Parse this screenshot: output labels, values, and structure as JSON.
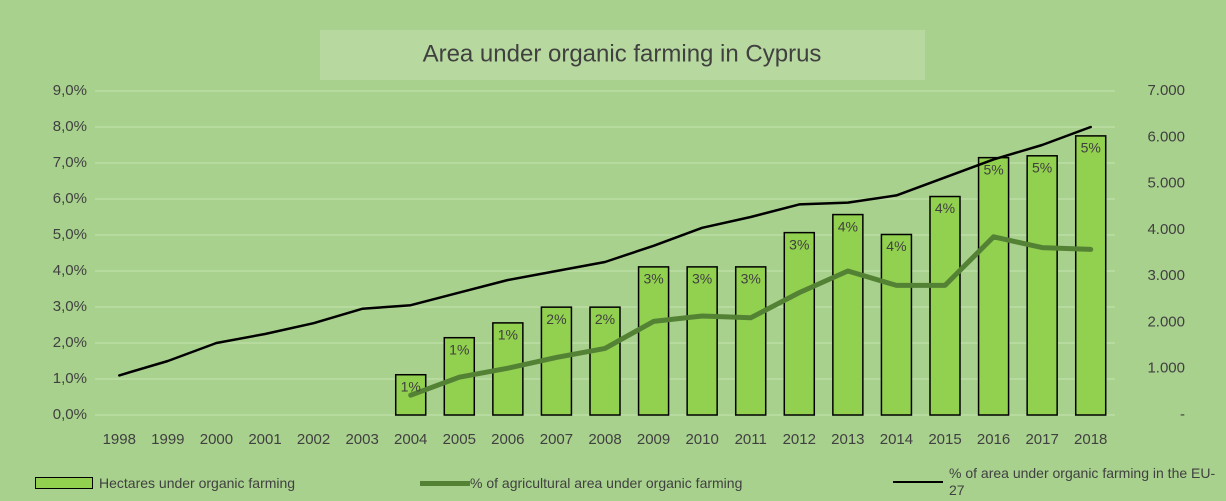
{
  "chart_data": {
    "type": "bar",
    "title": "Area under organic farming in Cyprus",
    "categories": [
      "1998",
      "1999",
      "2000",
      "2001",
      "2002",
      "2003",
      "2004",
      "2005",
      "2006",
      "2007",
      "2008",
      "2009",
      "2010",
      "2011",
      "2012",
      "2013",
      "2014",
      "2015",
      "2016",
      "2017",
      "2018"
    ],
    "series": [
      {
        "name": "Hectares under organic farming",
        "type": "bar",
        "axis": "y2",
        "color": "#92d050",
        "values": [
          null,
          null,
          null,
          null,
          null,
          null,
          870,
          1670,
          1990,
          2330,
          2330,
          3200,
          3200,
          3200,
          3940,
          4330,
          3900,
          4720,
          5560,
          5600,
          6030
        ]
      },
      {
        "name": "% of agricultural area under organic farming",
        "type": "line",
        "color": "#548235",
        "values": [
          null,
          null,
          null,
          null,
          null,
          null,
          0.55,
          1.05,
          1.3,
          1.6,
          1.85,
          2.6,
          2.75,
          2.7,
          3.4,
          4.0,
          3.6,
          3.6,
          4.95,
          4.65,
          4.6
        ],
        "value_labels": [
          null,
          null,
          null,
          null,
          null,
          null,
          "1%",
          "1%",
          "1%",
          "2%",
          "2%",
          "3%",
          "3%",
          "3%",
          "3%",
          "4%",
          "4%",
          "4%",
          "5%",
          "5%",
          "5%"
        ]
      },
      {
        "name": "% of area under organic farming in the EU-27",
        "type": "line",
        "color": "#000000",
        "values": [
          1.1,
          1.5,
          2.0,
          2.25,
          2.55,
          2.95,
          3.05,
          3.4,
          3.75,
          4.0,
          4.25,
          4.7,
          5.2,
          5.5,
          5.85,
          5.9,
          6.1,
          6.6,
          7.1,
          7.5,
          8.0
        ]
      }
    ],
    "ylim": [
      0,
      9
    ],
    "yticks": [
      {
        "value": 0,
        "label": "0,0%"
      },
      {
        "value": 1,
        "label": "1,0%"
      },
      {
        "value": 2,
        "label": "2,0%"
      },
      {
        "value": 3,
        "label": "3,0%"
      },
      {
        "value": 4,
        "label": "4,0%"
      },
      {
        "value": 5,
        "label": "5,0%"
      },
      {
        "value": 6,
        "label": "6,0%"
      },
      {
        "value": 7,
        "label": "7,0%"
      },
      {
        "value": 8,
        "label": "8,0%"
      },
      {
        "value": 9,
        "label": "9,0%"
      }
    ],
    "y2lim": [
      0,
      7000
    ],
    "y2ticks": [
      {
        "value": 0,
        "label": "-"
      },
      {
        "value": 1000,
        "label": "1.000"
      },
      {
        "value": 2000,
        "label": "2.000"
      },
      {
        "value": 3000,
        "label": "3.000"
      },
      {
        "value": 4000,
        "label": "4.000"
      },
      {
        "value": 5000,
        "label": "5.000"
      },
      {
        "value": 6000,
        "label": "6.000"
      },
      {
        "value": 7000,
        "label": "7.000"
      }
    ],
    "grid": true,
    "legend": "bottom"
  }
}
